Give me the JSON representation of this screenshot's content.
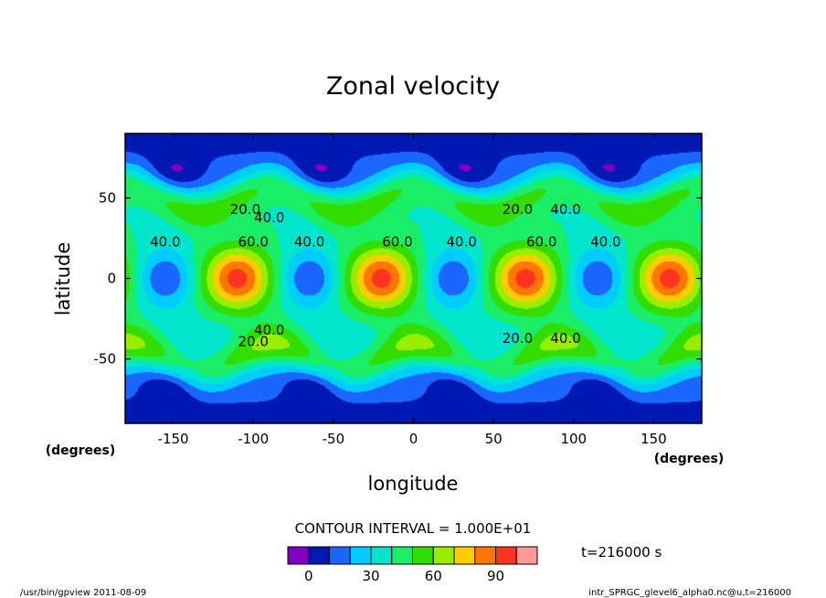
{
  "chart_data": {
    "type": "heatmap",
    "title": "Zonal velocity",
    "xlabel": "longitude",
    "ylabel": "latitude",
    "x_unit": "(degrees)",
    "y_unit": "(degrees)",
    "xlim": [
      -180,
      180
    ],
    "ylim": [
      -90,
      90
    ],
    "x_ticks": [
      -150,
      -100,
      -50,
      0,
      50,
      100,
      150
    ],
    "y_ticks": [
      50,
      0,
      -50
    ],
    "field_approx": {
      "equatorial_maxima_lon": [
        -110,
        -20,
        70,
        160
      ],
      "equatorial_maxima_value": 95,
      "equatorial_minima_lon": [
        -155,
        -65,
        25,
        115
      ],
      "equatorial_minima_value": 10,
      "midlatitude_bands_lat": [
        50,
        -50
      ],
      "polar_value": 5
    },
    "contour_labels": [
      {
        "text": "20.0",
        "lon": -105,
        "lat": 40
      },
      {
        "text": "40.0",
        "lon": -90,
        "lat": 35
      },
      {
        "text": "40.0",
        "lon": -155,
        "lat": 20
      },
      {
        "text": "60.0",
        "lon": -100,
        "lat": 20
      },
      {
        "text": "40.0",
        "lon": -65,
        "lat": 20
      },
      {
        "text": "60.0",
        "lon": -10,
        "lat": 20
      },
      {
        "text": "40.0",
        "lon": 30,
        "lat": 20
      },
      {
        "text": "60.0",
        "lon": 80,
        "lat": 20
      },
      {
        "text": "40.0",
        "lon": 120,
        "lat": 20
      },
      {
        "text": "20.0",
        "lon": 65,
        "lat": 40
      },
      {
        "text": "40.0",
        "lon": 95,
        "lat": 40
      },
      {
        "text": "40.0",
        "lon": -90,
        "lat": -35
      },
      {
        "text": "20.0",
        "lon": -100,
        "lat": -42
      },
      {
        "text": "20.0",
        "lon": 65,
        "lat": -40
      },
      {
        "text": "40.0",
        "lon": 95,
        "lat": -40
      }
    ],
    "contour_interval_text": "CONTOUR INTERVAL = 1.000E+01",
    "time_text": "t=216000 s",
    "colorbar": {
      "bounds": [
        -10,
        0,
        10,
        20,
        30,
        40,
        50,
        60,
        70,
        80,
        90,
        100,
        110
      ],
      "colors": [
        "#7f00bf",
        "#0019b3",
        "#1a66ff",
        "#00ccff",
        "#00e6cc",
        "#1aee66",
        "#33dd00",
        "#99ee00",
        "#ffcc00",
        "#ff7700",
        "#ff3322",
        "#ff9999"
      ],
      "tick_labels": [
        "0",
        "30",
        "60",
        "90"
      ],
      "tick_values": [
        0,
        30,
        60,
        90
      ]
    },
    "footer_left": "/usr/bin/gpview   2011-08-09",
    "footer_right": "intr_SPRGC_glevel6_alpha0.nc@u,t=216000"
  }
}
